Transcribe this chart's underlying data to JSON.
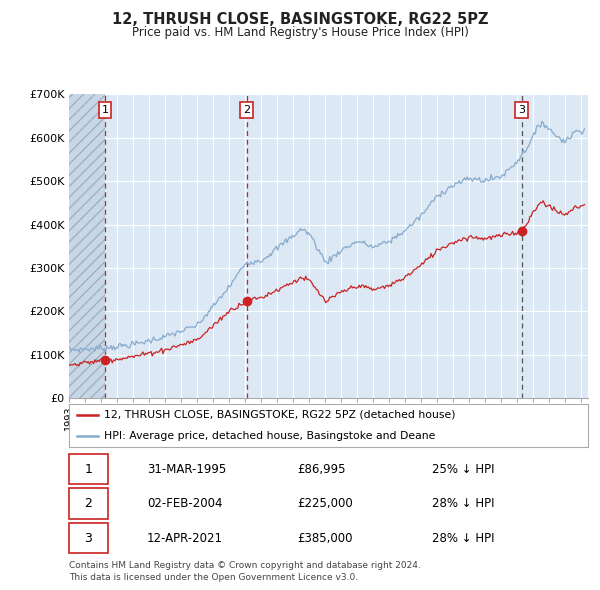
{
  "title": "12, THRUSH CLOSE, BASINGSTOKE, RG22 5PZ",
  "subtitle": "Price paid vs. HM Land Registry's House Price Index (HPI)",
  "sale_prices": [
    86995,
    225000,
    385000
  ],
  "sale_labels": [
    "1",
    "2",
    "3"
  ],
  "red_line_color": "#cc2222",
  "blue_line_color": "#88aacc",
  "marker_color": "#cc2222",
  "vline_color_12": "#cc2222",
  "vline_color_3": "#555555",
  "bg_color": "#dce8f4",
  "grid_color": "#ffffff",
  "ylim": [
    0,
    700000
  ],
  "yticks": [
    0,
    100000,
    200000,
    300000,
    400000,
    500000,
    600000,
    700000
  ],
  "ytick_labels": [
    "£0",
    "£100K",
    "£200K",
    "£300K",
    "£400K",
    "£500K",
    "£600K",
    "£700K"
  ],
  "legend_label_red": "12, THRUSH CLOSE, BASINGSTOKE, RG22 5PZ (detached house)",
  "legend_label_blue": "HPI: Average price, detached house, Basingstoke and Deane",
  "footer": "Contains HM Land Registry data © Crown copyright and database right 2024.\nThis data is licensed under the Open Government Licence v3.0.",
  "table_rows": [
    [
      "1",
      "31-MAR-1995",
      "£86,995",
      "25% ↓ HPI"
    ],
    [
      "2",
      "02-FEB-2004",
      "£225,000",
      "28% ↓ HPI"
    ],
    [
      "3",
      "12-APR-2021",
      "£385,000",
      "28% ↓ HPI"
    ]
  ]
}
